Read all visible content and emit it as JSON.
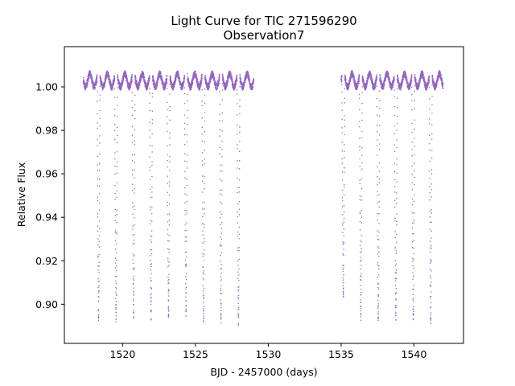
{
  "chart_data": {
    "type": "scatter",
    "title": "Light Curve for TIC 271596290",
    "subtitle": "Observation7",
    "xlabel": "BJD - 2457000 (days)",
    "ylabel": "Relative Flux",
    "xlim": [
      1516.0,
      1543.4
    ],
    "ylim": [
      0.882,
      1.0185
    ],
    "xticks": [
      1520,
      1525,
      1530,
      1535,
      1540
    ],
    "yticks": [
      0.9,
      0.92,
      0.94,
      0.96,
      0.98,
      1.0
    ],
    "xtick_labels": [
      "1520",
      "1525",
      "1530",
      "1535",
      "1540"
    ],
    "ytick_labels": [
      "0.90",
      "0.92",
      "0.94",
      "0.96",
      "0.98",
      "1.00"
    ],
    "grid": false,
    "marker_color": "#9467bd",
    "series": [
      {
        "segments": [
          [
            1517.3,
            1529.0
          ],
          [
            1535.0,
            1542.0
          ]
        ],
        "period": 1.2,
        "primary_eclipse_times": [
          1518.35,
          1519.55,
          1520.75,
          1521.95,
          1523.15,
          1524.35,
          1525.55,
          1526.75,
          1527.95,
          1535.15,
          1536.35,
          1537.55,
          1538.75,
          1539.95,
          1541.15
        ],
        "eclipse_minima": [
          0.893,
          0.893,
          0.894,
          0.894,
          0.894,
          0.895,
          0.893,
          0.892,
          0.891,
          0.903,
          0.894,
          0.893,
          0.893,
          0.892,
          0.892
        ],
        "out_of_eclipse_level": 1.0,
        "out_of_eclipse_peak": 1.008,
        "points": [
          [
            1518.0,
            1.004
          ],
          [
            1518.2,
            0.99
          ],
          [
            1518.35,
            0.893
          ],
          [
            1518.5,
            0.99
          ],
          [
            1518.8,
            1.008
          ],
          [
            1519.55,
            0.893
          ],
          [
            1520.2,
            1.009
          ],
          [
            1520.75,
            0.894
          ],
          [
            1521.4,
            1.009
          ],
          [
            1521.95,
            0.894
          ],
          [
            1522.6,
            1.008
          ],
          [
            1523.15,
            0.894
          ],
          [
            1523.8,
            1.008
          ],
          [
            1524.35,
            0.895
          ],
          [
            1525.0,
            1.007
          ],
          [
            1525.55,
            0.893
          ],
          [
            1526.2,
            1.006
          ],
          [
            1526.75,
            0.892
          ],
          [
            1527.4,
            1.006
          ],
          [
            1527.95,
            0.891
          ],
          [
            1528.6,
            1.0
          ],
          [
            1535.15,
            0.903
          ],
          [
            1535.8,
            1.008
          ],
          [
            1536.35,
            0.894
          ],
          [
            1537.0,
            1.008
          ],
          [
            1537.55,
            0.893
          ],
          [
            1538.2,
            1.007
          ],
          [
            1538.75,
            0.893
          ],
          [
            1539.4,
            1.007
          ],
          [
            1539.95,
            0.892
          ],
          [
            1540.6,
            1.006
          ],
          [
            1541.15,
            0.892
          ],
          [
            1541.8,
            1.002
          ]
        ]
      }
    ]
  }
}
